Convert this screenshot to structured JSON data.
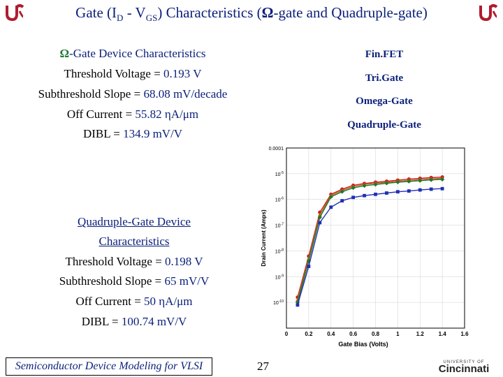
{
  "title": {
    "text_main": "Gate (I",
    "sub_d": "D",
    "mid": " - V",
    "sub_gs": "GS",
    "rest": ") Characteristics (",
    "omega": "Ω",
    "tail": "-gate and Quadruple-gate)"
  },
  "omega_section": {
    "heading_symbol": "Ω",
    "heading_text": "-Gate Device Characteristics",
    "lines": [
      {
        "label": "Threshold Voltage = ",
        "value": "0.193 V"
      },
      {
        "label": "Subthreshold Slope = ",
        "value": "68.08 mV/decade"
      },
      {
        "label": "Off Current = ",
        "value": "55.82 ηA/μm"
      },
      {
        "label": "DIBL = ",
        "value": "134.9 mV/V"
      }
    ]
  },
  "quad_section": {
    "heading_line1": "Quadruple-Gate Device",
    "heading_line2": "Characteristics",
    "lines": [
      {
        "label": "Threshold Voltage = ",
        "value": "0.198 V"
      },
      {
        "label": "Subthreshold Slope = ",
        "value": "65 mV/V"
      },
      {
        "label": "Off Current = ",
        "value": "50 ηA/μm"
      },
      {
        "label": "DIBL = ",
        "value": "100.74 mV/V"
      }
    ]
  },
  "legend_items": [
    "Fin.FET",
    "Tri.Gate",
    "Omega-Gate",
    "Quadruple-Gate"
  ],
  "footer": {
    "left": "Semiconductor Device Modeling for VLSI",
    "page": "27",
    "logo_top": "UNIVERSITY OF",
    "logo_bottom": "Cincinnati"
  },
  "colors": {
    "title_blue": "#0a1f7a",
    "logo_red": "#b01c2e",
    "finfet": "#cc1f1f",
    "trigate": "#b5651d",
    "omega": "#1b7a2e",
    "quad": "#1f2fb5"
  },
  "chart_data": {
    "type": "line",
    "xlabel": "Gate Bias (Volts)",
    "ylabel": "Drain Current (Amps)",
    "xlim": [
      0,
      1.6
    ],
    "ylim_log10": [
      -11,
      -4
    ],
    "x_ticks": [
      "0",
      "0.2",
      "0.4",
      "0.6",
      "0.8",
      "1",
      "1.2",
      "1.4",
      "1.6"
    ],
    "y_ticks": [
      {
        "exp": -4,
        "label": "0.0001",
        "sup": ""
      },
      {
        "exp": -5,
        "label": "10",
        "sup": "-5"
      },
      {
        "exp": -6,
        "label": "10",
        "sup": "-6"
      },
      {
        "exp": -7,
        "label": "10",
        "sup": "-7"
      },
      {
        "exp": -8,
        "label": "10",
        "sup": "-8"
      },
      {
        "exp": -9,
        "label": "10",
        "sup": "-9"
      },
      {
        "exp": -10,
        "label": "10",
        "sup": "-10"
      }
    ],
    "x": [
      0.1,
      0.2,
      0.3,
      0.4,
      0.5,
      0.6,
      0.7,
      0.8,
      0.9,
      1.0,
      1.1,
      1.2,
      1.3,
      1.4
    ],
    "series": [
      {
        "color": "#cc1f1f",
        "marker": "circle",
        "values": [
          -9.8,
          -8.2,
          -6.5,
          -5.8,
          -5.6,
          -5.45,
          -5.38,
          -5.33,
          -5.29,
          -5.25,
          -5.21,
          -5.18,
          -5.15,
          -5.13
        ]
      },
      {
        "color": "#b5651d",
        "marker": "triangle",
        "values": [
          -9.9,
          -8.3,
          -6.6,
          -5.85,
          -5.65,
          -5.5,
          -5.42,
          -5.37,
          -5.33,
          -5.29,
          -5.26,
          -5.23,
          -5.2,
          -5.18
        ]
      },
      {
        "color": "#1b7a2e",
        "marker": "diamond",
        "values": [
          -10.0,
          -8.4,
          -6.7,
          -5.9,
          -5.7,
          -5.55,
          -5.47,
          -5.42,
          -5.37,
          -5.33,
          -5.3,
          -5.27,
          -5.24,
          -5.22
        ]
      },
      {
        "color": "#1f2fb5",
        "marker": "square",
        "values": [
          -10.1,
          -8.6,
          -6.9,
          -6.3,
          -6.05,
          -5.92,
          -5.85,
          -5.8,
          -5.75,
          -5.7,
          -5.67,
          -5.63,
          -5.6,
          -5.58
        ]
      }
    ]
  }
}
